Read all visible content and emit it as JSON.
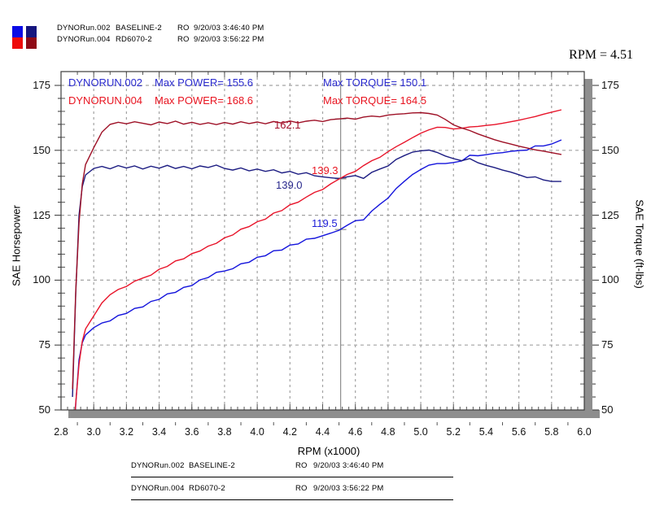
{
  "header_legend": {
    "rows": [
      {
        "file": "DYNORun.002",
        "label": "BASELINE-2",
        "ro": "RO",
        "datetime": "9/20/03 3:46:40 PM",
        "colors": [
          "#0a0ae6",
          "#16167e"
        ]
      },
      {
        "file": "DYNORun.004",
        "label": "RD6070-2",
        "ro": "RO",
        "datetime": "9/20/03 3:56:22 PM",
        "colors": [
          "#ee0a0a",
          "#8e0a16"
        ]
      }
    ]
  },
  "cursor_readout": "RPM = 4.51",
  "annotations": {
    "runs": [
      {
        "name": "DYNORUN.002",
        "max_power": "Max POWER= 155.6",
        "max_torque": "Max TORQUE= 150.1"
      },
      {
        "name": "DYNORUN.004",
        "max_power": "Max POWER= 168.6",
        "max_torque": "Max TORQUE= 164.5"
      }
    ]
  },
  "footer_legend": {
    "rows": [
      {
        "file": "DYNORun.002",
        "label": "BASELINE-2",
        "ro": "RO",
        "datetime": "9/20/03 3:46:40 PM"
      },
      {
        "file": "DYNORun.004",
        "label": "RD6070-2",
        "ro": "RO",
        "datetime": "9/20/03 3:56:22 PM"
      }
    ]
  },
  "chart_data": {
    "type": "line",
    "xlabel": "RPM (x1000)",
    "ylabel_left": "SAE Horsepower",
    "ylabel_right": "SAE Torque (ft-lbs)",
    "x_axis": {
      "min": 2.8,
      "max": 6.0,
      "ticks": [
        2.8,
        3.0,
        3.2,
        3.4,
        3.6,
        3.8,
        4.0,
        4.2,
        4.4,
        4.6,
        4.8,
        5.0,
        5.2,
        5.4,
        5.6,
        5.8,
        6.0
      ]
    },
    "y_axis": {
      "min": 50,
      "max": 175,
      "ticks": [
        50,
        75,
        100,
        125,
        150,
        175
      ]
    },
    "grid": true,
    "cursor": {
      "rpm": 4.51,
      "readings": [
        {
          "series": "run004-torque",
          "label": "162.1",
          "value": 162.1
        },
        {
          "series": "run004-power",
          "label": "139.3",
          "value": 139.3
        },
        {
          "series": "run002-torque",
          "label": "139.0",
          "value": 139.0
        },
        {
          "series": "run002-power",
          "label": "119.5",
          "value": 119.5
        }
      ]
    },
    "series": [
      {
        "name": "run002-power",
        "run": "DYNORUN.002",
        "quantity": "SAE Horsepower",
        "max": 155.6,
        "color": "#1414dc",
        "points": [
          [
            2.87,
            30.1
          ],
          [
            2.89,
            52.3
          ],
          [
            2.91,
            69.3
          ],
          [
            2.93,
            75.9
          ],
          [
            2.95,
            78.9
          ],
          [
            3.0,
            81.7
          ],
          [
            3.05,
            83.5
          ],
          [
            3.1,
            84.3
          ],
          [
            3.15,
            86.4
          ],
          [
            3.2,
            87.2
          ],
          [
            3.25,
            89.1
          ],
          [
            3.3,
            89.7
          ],
          [
            3.35,
            91.8
          ],
          [
            3.4,
            92.6
          ],
          [
            3.45,
            94.7
          ],
          [
            3.5,
            95.3
          ],
          [
            3.55,
            97.2
          ],
          [
            3.6,
            97.9
          ],
          [
            3.65,
            100.1
          ],
          [
            3.7,
            101
          ],
          [
            3.75,
            103
          ],
          [
            3.8,
            103.5
          ],
          [
            3.85,
            104.4
          ],
          [
            3.9,
            106.3
          ],
          [
            3.95,
            106.9
          ],
          [
            4.0,
            108.8
          ],
          [
            4.05,
            109.4
          ],
          [
            4.1,
            111.3
          ],
          [
            4.15,
            111.6
          ],
          [
            4.2,
            113.5
          ],
          [
            4.25,
            113.9
          ],
          [
            4.3,
            115.8
          ],
          [
            4.35,
            116.1
          ],
          [
            4.4,
            117.1
          ],
          [
            4.45,
            118.1
          ],
          [
            4.5,
            119.2
          ],
          [
            4.55,
            121.1
          ],
          [
            4.6,
            122.9
          ],
          [
            4.65,
            123.2
          ],
          [
            4.7,
            126.6
          ],
          [
            4.75,
            129.2
          ],
          [
            4.8,
            131.6
          ],
          [
            4.85,
            135.3
          ],
          [
            4.9,
            138.1
          ],
          [
            4.95,
            140.7
          ],
          [
            5.0,
            142.6
          ],
          [
            5.05,
            144.3
          ],
          [
            5.1,
            144.9
          ],
          [
            5.15,
            144.9
          ],
          [
            5.2,
            145.3
          ],
          [
            5.25,
            145.9
          ],
          [
            5.3,
            148.1
          ],
          [
            5.35,
            147.9
          ],
          [
            5.4,
            148.3
          ],
          [
            5.45,
            148.8
          ],
          [
            5.5,
            149.1
          ],
          [
            5.55,
            149.6
          ],
          [
            5.6,
            149.9
          ],
          [
            5.65,
            150.1
          ],
          [
            5.7,
            151.7
          ],
          [
            5.75,
            151.7
          ],
          [
            5.8,
            152.4
          ],
          [
            5.86,
            154
          ]
        ]
      },
      {
        "name": "run002-torque",
        "run": "DYNORUN.002",
        "quantity": "SAE Torque",
        "max": 150.1,
        "color": "#1c1c82",
        "points": [
          [
            2.87,
            55
          ],
          [
            2.89,
            95
          ],
          [
            2.91,
            125
          ],
          [
            2.93,
            136
          ],
          [
            2.95,
            140.5
          ],
          [
            3.0,
            143
          ],
          [
            3.05,
            143.8
          ],
          [
            3.1,
            142.9
          ],
          [
            3.15,
            144.1
          ],
          [
            3.2,
            143.2
          ],
          [
            3.25,
            144
          ],
          [
            3.3,
            142.8
          ],
          [
            3.35,
            143.9
          ],
          [
            3.4,
            143.1
          ],
          [
            3.45,
            144.2
          ],
          [
            3.5,
            143
          ],
          [
            3.55,
            143.8
          ],
          [
            3.6,
            142.9
          ],
          [
            3.65,
            144
          ],
          [
            3.7,
            143.4
          ],
          [
            3.75,
            144.3
          ],
          [
            3.8,
            143
          ],
          [
            3.85,
            142.4
          ],
          [
            3.9,
            143.2
          ],
          [
            3.95,
            142.1
          ],
          [
            4.0,
            142.8
          ],
          [
            4.05,
            141.9
          ],
          [
            4.1,
            142.5
          ],
          [
            4.15,
            141.3
          ],
          [
            4.2,
            141.9
          ],
          [
            4.25,
            140.8
          ],
          [
            4.3,
            141.4
          ],
          [
            4.35,
            140.2
          ],
          [
            4.4,
            139.8
          ],
          [
            4.45,
            139.4
          ],
          [
            4.5,
            139.1
          ],
          [
            4.55,
            139.8
          ],
          [
            4.6,
            140.3
          ],
          [
            4.65,
            139.2
          ],
          [
            4.7,
            141.5
          ],
          [
            4.75,
            142.8
          ],
          [
            4.8,
            144
          ],
          [
            4.85,
            146.5
          ],
          [
            4.9,
            148
          ],
          [
            4.95,
            149.3
          ],
          [
            5.0,
            149.8
          ],
          [
            5.05,
            150.1
          ],
          [
            5.1,
            149.2
          ],
          [
            5.15,
            147.8
          ],
          [
            5.2,
            146.8
          ],
          [
            5.25,
            146
          ],
          [
            5.3,
            146.8
          ],
          [
            5.35,
            145.2
          ],
          [
            5.4,
            144.2
          ],
          [
            5.45,
            143.4
          ],
          [
            5.5,
            142.4
          ],
          [
            5.55,
            141.6
          ],
          [
            5.6,
            140.6
          ],
          [
            5.65,
            139.5
          ],
          [
            5.7,
            139.8
          ],
          [
            5.75,
            138.6
          ],
          [
            5.8,
            138
          ],
          [
            5.86,
            138
          ]
        ]
      },
      {
        "name": "run004-power",
        "run": "DYNORUN.004",
        "quantity": "SAE Horsepower",
        "max": 168.6,
        "color": "#e8142a",
        "points": [
          [
            2.87,
            31.7
          ],
          [
            2.89,
            52.8
          ],
          [
            2.91,
            67.6
          ],
          [
            2.93,
            76.4
          ],
          [
            2.95,
            81.2
          ],
          [
            3.0,
            86.2
          ],
          [
            3.05,
            91.2
          ],
          [
            3.1,
            94.4
          ],
          [
            3.15,
            96.4
          ],
          [
            3.2,
            97.6
          ],
          [
            3.25,
            99.6
          ],
          [
            3.3,
            100.8
          ],
          [
            3.35,
            101.9
          ],
          [
            3.4,
            104.2
          ],
          [
            3.45,
            105.3
          ],
          [
            3.5,
            107.4
          ],
          [
            3.55,
            108.2
          ],
          [
            3.6,
            110.2
          ],
          [
            3.65,
            111.2
          ],
          [
            3.7,
            113.1
          ],
          [
            3.75,
            114.2
          ],
          [
            3.8,
            116.3
          ],
          [
            3.85,
            117.4
          ],
          [
            3.9,
            119.6
          ],
          [
            3.95,
            120.6
          ],
          [
            4.0,
            122.5
          ],
          [
            4.05,
            123.5
          ],
          [
            4.1,
            125.8
          ],
          [
            4.15,
            126.8
          ],
          [
            4.2,
            129
          ],
          [
            4.25,
            130
          ],
          [
            4.3,
            132
          ],
          [
            4.35,
            133.8
          ],
          [
            4.4,
            134.9
          ],
          [
            4.45,
            137.1
          ],
          [
            4.5,
            138.9
          ],
          [
            4.55,
            140.7
          ],
          [
            4.6,
            141.9
          ],
          [
            4.65,
            144.1
          ],
          [
            4.7,
            146
          ],
          [
            4.75,
            147.3
          ],
          [
            4.8,
            149.5
          ],
          [
            4.85,
            151.4
          ],
          [
            4.9,
            153.1
          ],
          [
            4.95,
            154.9
          ],
          [
            5.0,
            156.6
          ],
          [
            5.05,
            157.9
          ],
          [
            5.1,
            158.9
          ],
          [
            5.15,
            158.8
          ],
          [
            5.2,
            158.2
          ],
          [
            5.25,
            158.5
          ],
          [
            5.3,
            159
          ],
          [
            5.35,
            159.2
          ],
          [
            5.4,
            159.6
          ],
          [
            5.45,
            159.9
          ],
          [
            5.5,
            160.4
          ],
          [
            5.55,
            161
          ],
          [
            5.6,
            161.6
          ],
          [
            5.65,
            162.3
          ],
          [
            5.7,
            163
          ],
          [
            5.75,
            163.9
          ],
          [
            5.8,
            164.7
          ],
          [
            5.86,
            165.6
          ]
        ]
      },
      {
        "name": "run004-torque",
        "run": "DYNORUN.004",
        "quantity": "SAE Torque",
        "max": 164.5,
        "color": "#9e1026",
        "points": [
          [
            2.87,
            58
          ],
          [
            2.89,
            96
          ],
          [
            2.91,
            122
          ],
          [
            2.93,
            137
          ],
          [
            2.95,
            144.5
          ],
          [
            3.0,
            151
          ],
          [
            3.05,
            157
          ],
          [
            3.1,
            160
          ],
          [
            3.15,
            160.8
          ],
          [
            3.2,
            160.2
          ],
          [
            3.25,
            161
          ],
          [
            3.3,
            160.4
          ],
          [
            3.35,
            159.8
          ],
          [
            3.4,
            160.9
          ],
          [
            3.45,
            160.3
          ],
          [
            3.5,
            161.2
          ],
          [
            3.55,
            160.1
          ],
          [
            3.6,
            160.8
          ],
          [
            3.65,
            160
          ],
          [
            3.7,
            160.6
          ],
          [
            3.75,
            159.9
          ],
          [
            3.8,
            160.7
          ],
          [
            3.85,
            160.1
          ],
          [
            3.9,
            161
          ],
          [
            3.95,
            160.3
          ],
          [
            4.0,
            160.9
          ],
          [
            4.05,
            160.2
          ],
          [
            4.1,
            161.1
          ],
          [
            4.15,
            160.5
          ],
          [
            4.2,
            161.3
          ],
          [
            4.25,
            160.6
          ],
          [
            4.3,
            161.2
          ],
          [
            4.35,
            161.6
          ],
          [
            4.4,
            161.1
          ],
          [
            4.45,
            161.8
          ],
          [
            4.5,
            162.1
          ],
          [
            4.55,
            162.4
          ],
          [
            4.6,
            162
          ],
          [
            4.65,
            162.8
          ],
          [
            4.7,
            163.2
          ],
          [
            4.75,
            162.9
          ],
          [
            4.8,
            163.6
          ],
          [
            4.85,
            163.9
          ],
          [
            4.9,
            164.1
          ],
          [
            4.95,
            164.4
          ],
          [
            5.0,
            164.5
          ],
          [
            5.05,
            164.2
          ],
          [
            5.1,
            163.6
          ],
          [
            5.15,
            161.9
          ],
          [
            5.2,
            159.8
          ],
          [
            5.25,
            158.6
          ],
          [
            5.3,
            157.6
          ],
          [
            5.35,
            156.3
          ],
          [
            5.4,
            155.2
          ],
          [
            5.45,
            154.1
          ],
          [
            5.5,
            153.2
          ],
          [
            5.55,
            152.4
          ],
          [
            5.6,
            151.6
          ],
          [
            5.65,
            150.9
          ],
          [
            5.7,
            150.2
          ],
          [
            5.75,
            149.7
          ],
          [
            5.8,
            149.1
          ],
          [
            5.86,
            148.4
          ]
        ]
      }
    ],
    "colors": {
      "grid": "#a3a3a3",
      "cursor": "#8f8f8f",
      "frame": "#3c3c3c",
      "shadow": "#8e8e8e"
    }
  }
}
